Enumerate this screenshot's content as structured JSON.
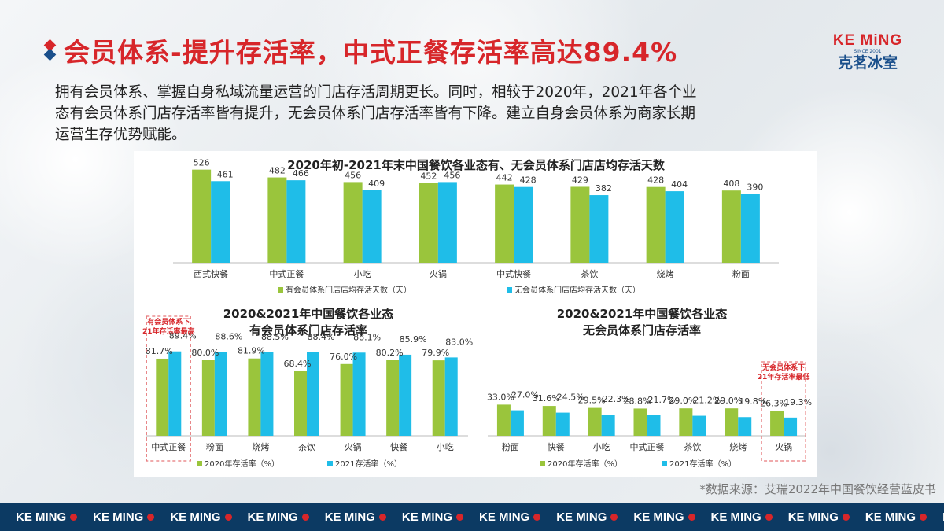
{
  "title": "会员体系-提升存活率，中式正餐存活率高达89.4%",
  "logo": {
    "en": "KE MiNG",
    "tag": "SINCE 2001",
    "cn": "克茗冰室"
  },
  "body_lines": [
    "拥有会员体系、掌握自身私域流量运营的门店存活周期更长。同时，相较于2020年，2021年各个业",
    "态有会员体系门店存活率皆有提升，无会员体系门店存活率皆有下降。建立自身会员体系为商家长期",
    "运营生存优势赋能。"
  ],
  "source": "*数据来源：艾瑞2022年中国餐饮经营蓝皮书",
  "footer": {
    "brand": "KE MING",
    "repeat": 13
  },
  "colors": {
    "green": "#9ac53c",
    "cyan": "#1fbde8",
    "red": "#d7262a",
    "navy": "#0c3a63"
  },
  "chart_data": [
    {
      "type": "bar",
      "title": "2020年初-2021年末中国餐饮各业态有、无会员体系门店店均存活天数",
      "categories": [
        "西式快餐",
        "中式正餐",
        "小吃",
        "火锅",
        "中式快餐",
        "茶饮",
        "烧烤",
        "粉面"
      ],
      "series": [
        {
          "name": "有会员体系门店店均存活天数（天）",
          "values": [
            526,
            482,
            456,
            452,
            442,
            429,
            428,
            408
          ],
          "labels": [
            "526",
            "482",
            "456",
            "452",
            "442",
            "429",
            "428",
            "408"
          ]
        },
        {
          "name": "无会员体系门店店均存活天数（天）",
          "values": [
            461,
            466,
            409,
            456,
            428,
            382,
            404,
            390
          ],
          "labels": [
            "461",
            "466",
            "409",
            "456",
            "428",
            "382",
            "404",
            "390"
          ]
        }
      ],
      "ylim": [
        0,
        600
      ]
    },
    {
      "type": "bar",
      "title": [
        "2020&2021年中国餐饮各业态",
        "有会员体系门店存活率"
      ],
      "categories": [
        "中式正餐",
        "粉面",
        "烧烤",
        "茶饮",
        "火锅",
        "快餐",
        "小吃"
      ],
      "series": [
        {
          "name": "2020年存活率（%）",
          "values": [
            81.7,
            80.0,
            81.9,
            68.4,
            76.0,
            80.2,
            79.9
          ],
          "labels": [
            "81.7%",
            "80.0%",
            "81.9%",
            "68.4%",
            "76.0%",
            "80.2%",
            "79.9%"
          ]
        },
        {
          "name": "2021存活率（%）",
          "values": [
            89.4,
            88.6,
            88.5,
            88.4,
            88.1,
            85.9,
            83.0
          ],
          "labels": [
            "89.4%",
            "88.6%",
            "88.5%",
            "88.4%",
            "88.1%",
            "85.9%",
            "83.0%"
          ]
        }
      ],
      "ylim": [
        0,
        100
      ],
      "annotation": [
        "有会员体系下",
        "21年存活率最高"
      ],
      "annotation_category": "中式正餐"
    },
    {
      "type": "bar",
      "title": [
        "2020&2021年中国餐饮各业态",
        "无会员体系门店存活率"
      ],
      "categories": [
        "粉面",
        "快餐",
        "小吃",
        "中式正餐",
        "茶饮",
        "烧烤",
        "火锅"
      ],
      "series": [
        {
          "name": "2020年存活率（%）",
          "values": [
            33.0,
            31.6,
            29.5,
            28.8,
            29.0,
            29.0,
            26.3
          ],
          "labels": [
            "33.0%",
            "31.6%",
            "29.5%",
            "28.8%",
            "29.0%",
            "29.0%",
            "26.3%"
          ]
        },
        {
          "name": "2021存活率（%）",
          "values": [
            27.0,
            24.5,
            22.3,
            21.7,
            21.2,
            19.8,
            19.3
          ],
          "labels": [
            "27.0%",
            "24.5%",
            "22.3%",
            "21.7%",
            "21.2%",
            "19.8%",
            "19.3%"
          ]
        }
      ],
      "ylim": [
        0,
        100
      ],
      "annotation": [
        "无会员体系下",
        "21年存活率最低"
      ],
      "annotation_category": "火锅"
    }
  ]
}
